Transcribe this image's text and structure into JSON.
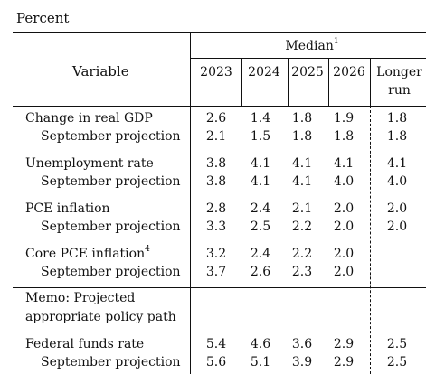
{
  "unit_label": "Percent",
  "header": {
    "variable": "Variable",
    "median": "Median",
    "median_sup": "1",
    "years": [
      "2023",
      "2024",
      "2025",
      "2026"
    ],
    "longer_run_line1": "Longer",
    "longer_run_line2": "run"
  },
  "rows": [
    {
      "label": "Change in real GDP",
      "sup": "",
      "values": [
        "2.6",
        "1.4",
        "1.8",
        "1.9",
        "1.8"
      ]
    },
    {
      "label": "September projection",
      "sup": "",
      "values": [
        "2.1",
        "1.5",
        "1.8",
        "1.8",
        "1.8"
      ]
    },
    {
      "label": "Unemployment rate",
      "sup": "",
      "values": [
        "3.8",
        "4.1",
        "4.1",
        "4.1",
        "4.1"
      ]
    },
    {
      "label": "September projection",
      "sup": "",
      "values": [
        "3.8",
        "4.1",
        "4.1",
        "4.0",
        "4.0"
      ]
    },
    {
      "label": "PCE inflation",
      "sup": "",
      "values": [
        "2.8",
        "2.4",
        "2.1",
        "2.0",
        "2.0"
      ]
    },
    {
      "label": "September projection",
      "sup": "",
      "values": [
        "3.3",
        "2.5",
        "2.2",
        "2.0",
        "2.0"
      ]
    },
    {
      "label": "Core PCE inflation",
      "sup": "4",
      "values": [
        "3.2",
        "2.4",
        "2.2",
        "2.0",
        ""
      ]
    },
    {
      "label": "September projection",
      "sup": "",
      "values": [
        "3.7",
        "2.6",
        "2.3",
        "2.0",
        ""
      ]
    }
  ],
  "memo": {
    "line1": "Memo: Projected",
    "line2": "appropriate policy path"
  },
  "policy_rows": [
    {
      "label": "Federal funds rate",
      "values": [
        "5.4",
        "4.6",
        "3.6",
        "2.9",
        "2.5"
      ]
    },
    {
      "label": "September projection",
      "values": [
        "5.6",
        "5.1",
        "3.9",
        "2.9",
        "2.5"
      ]
    }
  ]
}
